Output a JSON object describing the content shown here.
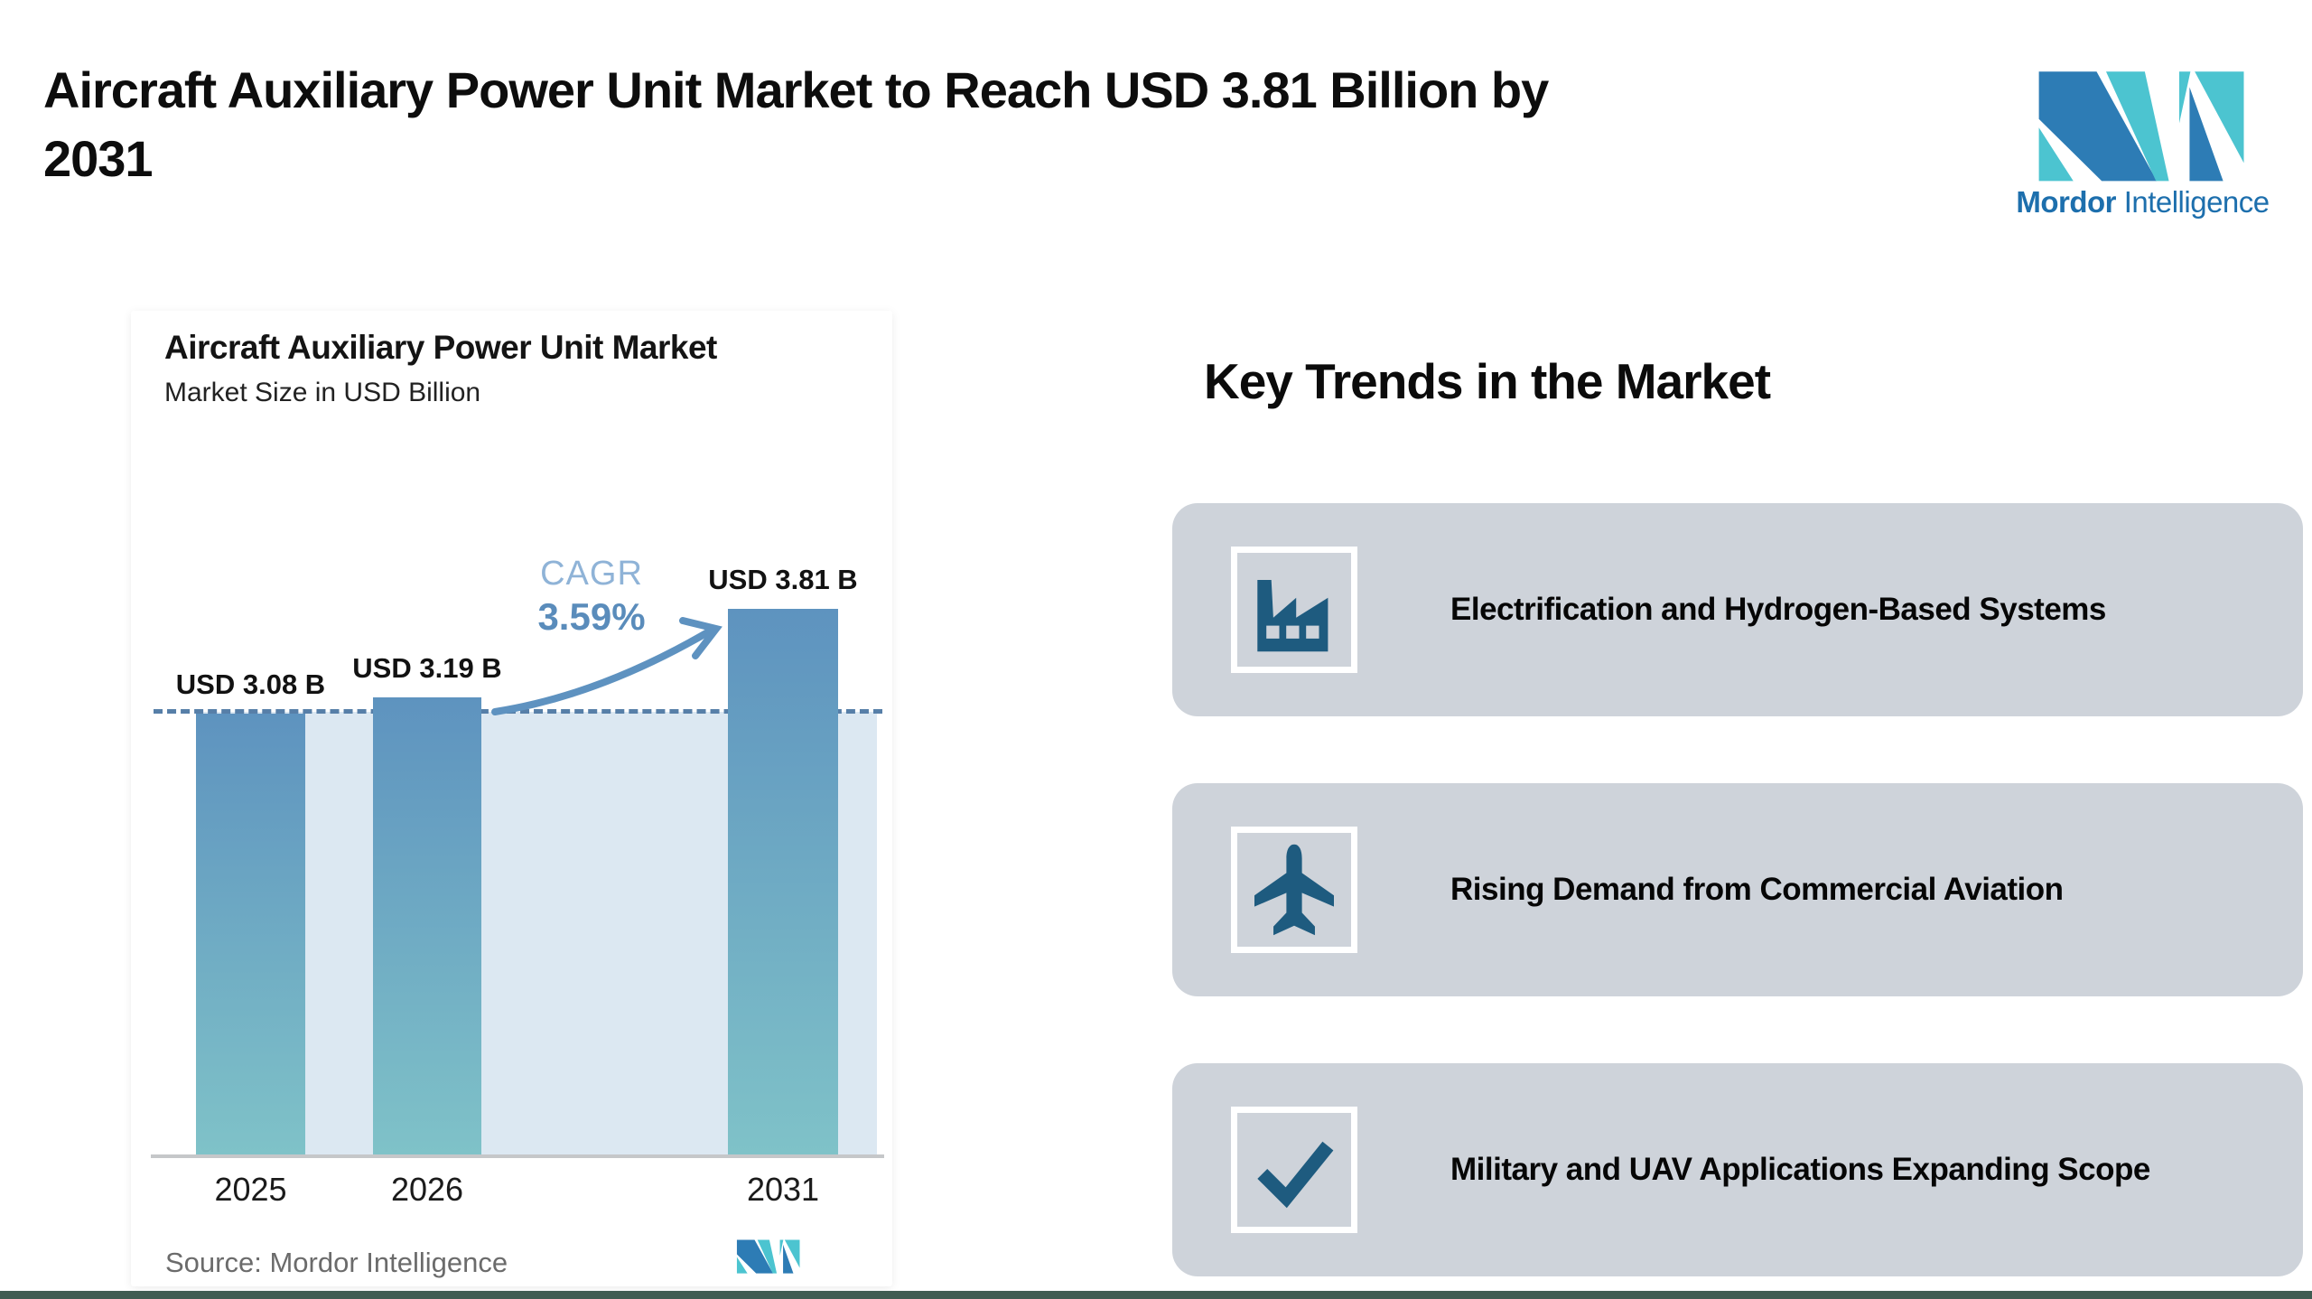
{
  "page": {
    "title_line1": "Aircraft Auxiliary Power Unit Market to Reach USD 3.81 Billion by",
    "title_line2": "2031"
  },
  "brand": {
    "name_bold": "Mordor",
    "name_regular": "Intelligence",
    "blue": "#2d7cb5",
    "teal": "#4cc4d0",
    "text_color": "#1d6fad"
  },
  "chart_card": {
    "title": "Aircraft Auxiliary Power Unit Market",
    "subtitle": "Market Size in USD Billion",
    "cagr_label": "CAGR",
    "cagr_value": "3.59%",
    "source_label": "Source:",
    "source_value": "Mordor Intelligence"
  },
  "chart_data": {
    "type": "bar",
    "title": "Aircraft Auxiliary Power Unit Market",
    "subtitle": "Market Size in USD Billion",
    "categories": [
      "2025",
      "2026",
      "2031"
    ],
    "values": [
      3.08,
      3.19,
      3.81
    ],
    "bar_labels": [
      "USD 3.08 B",
      "USD 3.19 B",
      "USD 3.81 B"
    ],
    "cagr_percent": 3.59,
    "reference_line_value": 3.08,
    "ylim": [
      0,
      4.4
    ],
    "grid": false,
    "bar_gradient_top": "#5e93bf",
    "bar_gradient_bottom": "#7fc2c8",
    "backdrop_color": "#dce8f2",
    "dashed_line_color": "#577fa8",
    "arrow_color": "#5e92c0"
  },
  "key_trends": {
    "heading": "Key Trends in the Market",
    "items": [
      {
        "icon": "factory-icon",
        "label": "Electrification and Hydrogen-Based Systems"
      },
      {
        "icon": "airplane-icon",
        "label": "Rising Demand from Commercial Aviation"
      },
      {
        "icon": "checkmark-icon",
        "label": "Military and UAV Applications Expanding Scope"
      }
    ],
    "icon_color": "#1e5b7f",
    "card_color": "#ced3da"
  },
  "footer": {
    "bottom_strip_color": "#405c52"
  }
}
